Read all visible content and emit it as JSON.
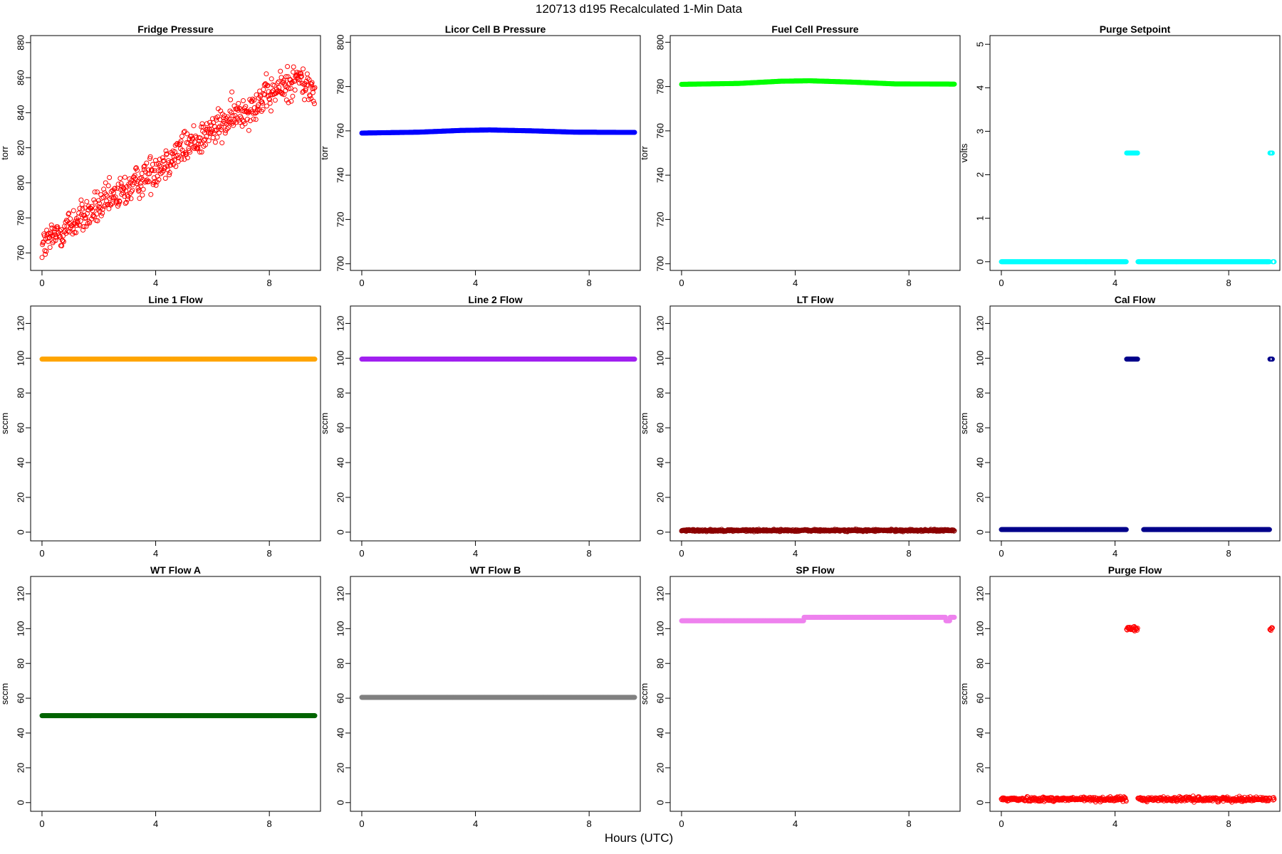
{
  "figure_title": "120713   d195   Recalculated 1-Min Data",
  "x_axis_label": "Hours (UTC)",
  "chart_data": [
    {
      "type": "scatter",
      "title": "Fridge Pressure",
      "ylabel": "torr",
      "xlim": [
        -0.4,
        9.8
      ],
      "ylim": [
        750,
        884
      ],
      "xticks": [
        0,
        4,
        8
      ],
      "yticks": [
        760,
        780,
        800,
        820,
        840,
        860,
        880
      ],
      "color": "#ff0000",
      "marker": "open-circle",
      "trend": [
        [
          0,
          764
        ],
        [
          1,
          776
        ],
        [
          2,
          786
        ],
        [
          3,
          796
        ],
        [
          4,
          808
        ],
        [
          5,
          820
        ],
        [
          6,
          830
        ],
        [
          7,
          840
        ],
        [
          8,
          850
        ],
        [
          9,
          860
        ],
        [
          9.5,
          852
        ]
      ],
      "noise": 7
    },
    {
      "type": "scatter",
      "title": "Licor Cell B Pressure",
      "ylabel": "torr",
      "xlim": [
        -0.4,
        9.8
      ],
      "ylim": [
        697,
        803
      ],
      "xticks": [
        0,
        4,
        8
      ],
      "yticks": [
        700,
        720,
        740,
        760,
        780,
        800
      ],
      "color": "#0000ff",
      "marker": "open-circle",
      "trend": [
        [
          0,
          759
        ],
        [
          2,
          759.4
        ],
        [
          3.5,
          760.2
        ],
        [
          4.5,
          760.4
        ],
        [
          6,
          760
        ],
        [
          7.5,
          759.4
        ],
        [
          9.6,
          759.3
        ]
      ],
      "noise": 0
    },
    {
      "type": "scatter",
      "title": "Fuel Cell Pressure",
      "ylabel": "torr",
      "xlim": [
        -0.4,
        9.8
      ],
      "ylim": [
        697,
        803
      ],
      "xticks": [
        0,
        4,
        8
      ],
      "yticks": [
        700,
        720,
        740,
        760,
        780,
        800
      ],
      "color": "#00ff00",
      "marker": "open-circle",
      "trend": [
        [
          0,
          781
        ],
        [
          2,
          781.4
        ],
        [
          3.5,
          782.4
        ],
        [
          4.5,
          782.6
        ],
        [
          6,
          782
        ],
        [
          7.5,
          781.2
        ],
        [
          9.6,
          781.1
        ]
      ],
      "noise": 0
    },
    {
      "type": "scatter",
      "title": "Purge Setpoint",
      "ylabel": "volts",
      "xlim": [
        -0.4,
        9.8
      ],
      "ylim": [
        -0.2,
        5.2
      ],
      "xticks": [
        0,
        4,
        8
      ],
      "yticks": [
        0,
        1,
        2,
        3,
        4,
        5
      ],
      "color": "#00ffff",
      "marker": "open-circle",
      "segments": [
        {
          "x": [
            0,
            4.4
          ],
          "y": 0
        },
        {
          "x": [
            4.4,
            4.8
          ],
          "y": 2.5
        },
        {
          "x": [
            4.8,
            9.45
          ],
          "y": 0
        },
        {
          "x": [
            9.45,
            9.55
          ],
          "y": 2.5
        },
        {
          "x": [
            9.55,
            9.6
          ],
          "y": 0
        }
      ],
      "noise": 0
    },
    {
      "type": "scatter",
      "title": "Line 1 Flow",
      "ylabel": "sccm",
      "xlim": [
        -0.4,
        9.8
      ],
      "ylim": [
        -5,
        130
      ],
      "xticks": [
        0,
        4,
        8
      ],
      "yticks": [
        0,
        20,
        40,
        60,
        80,
        100,
        120
      ],
      "color": "#ffa500",
      "marker": "open-circle",
      "segments": [
        {
          "x": [
            0,
            9.6
          ],
          "y": 99.5
        }
      ],
      "noise": 0
    },
    {
      "type": "scatter",
      "title": "Line 2 Flow",
      "ylabel": "sccm",
      "xlim": [
        -0.4,
        9.8
      ],
      "ylim": [
        -5,
        130
      ],
      "xticks": [
        0,
        4,
        8
      ],
      "yticks": [
        0,
        20,
        40,
        60,
        80,
        100,
        120
      ],
      "color": "#a020f0",
      "marker": "open-circle",
      "segments": [
        {
          "x": [
            0,
            9.6
          ],
          "y": 99.5
        }
      ],
      "noise": 0
    },
    {
      "type": "scatter",
      "title": "LT Flow",
      "ylabel": "sccm",
      "xlim": [
        -0.4,
        9.8
      ],
      "ylim": [
        -5,
        130
      ],
      "xticks": [
        0,
        4,
        8
      ],
      "yticks": [
        0,
        20,
        40,
        60,
        80,
        100,
        120
      ],
      "color": "#8b0000",
      "marker": "open-circle",
      "segments": [
        {
          "x": [
            0,
            9.6
          ],
          "y": 1
        }
      ],
      "noise": 0.4
    },
    {
      "type": "scatter",
      "title": "Cal Flow",
      "ylabel": "sccm",
      "xlim": [
        -0.4,
        9.8
      ],
      "ylim": [
        -5,
        130
      ],
      "xticks": [
        0,
        4,
        8
      ],
      "yticks": [
        0,
        20,
        40,
        60,
        80,
        100,
        120
      ],
      "color": "#00008b",
      "marker": "open-circle",
      "segments": [
        {
          "x": [
            0,
            4.4
          ],
          "y": 1.5
        },
        {
          "x": [
            4.4,
            4.8
          ],
          "y": 99.5
        },
        {
          "x": [
            5.0,
            9.45
          ],
          "y": 1.5
        },
        {
          "x": [
            9.45,
            9.55
          ],
          "y": 99.5
        }
      ],
      "noise": 0
    },
    {
      "type": "scatter",
      "title": "WT Flow A",
      "ylabel": "sccm",
      "xlim": [
        -0.4,
        9.8
      ],
      "ylim": [
        -5,
        130
      ],
      "xticks": [
        0,
        4,
        8
      ],
      "yticks": [
        0,
        20,
        40,
        60,
        80,
        100,
        120
      ],
      "color": "#006400",
      "marker": "open-circle",
      "segments": [
        {
          "x": [
            0,
            9.6
          ],
          "y": 50
        }
      ],
      "noise": 0
    },
    {
      "type": "scatter",
      "title": "WT Flow B",
      "ylabel": "",
      "xlim": [
        -0.4,
        9.8
      ],
      "ylim": [
        -5,
        130
      ],
      "xticks": [
        0,
        4,
        8
      ],
      "yticks": [
        0,
        20,
        40,
        60,
        80,
        100,
        120
      ],
      "color": "#808080",
      "marker": "open-circle",
      "segments": [
        {
          "x": [
            0,
            9.6
          ],
          "y": 60.5
        }
      ],
      "noise": 0
    },
    {
      "type": "scatter",
      "title": "SP Flow",
      "ylabel": "sccm",
      "xlim": [
        -0.4,
        9.8
      ],
      "ylim": [
        -5,
        130
      ],
      "xticks": [
        0,
        4,
        8
      ],
      "yticks": [
        0,
        20,
        40,
        60,
        80,
        100,
        120
      ],
      "color": "#ee82ee",
      "marker": "open-circle",
      "segments": [
        {
          "x": [
            0,
            4.3
          ],
          "y": 104.5
        },
        {
          "x": [
            4.3,
            9.3
          ],
          "y": 106.5
        },
        {
          "x": [
            9.3,
            9.45
          ],
          "y": 104.5
        },
        {
          "x": [
            9.45,
            9.6
          ],
          "y": 106.5
        }
      ],
      "noise": 0
    },
    {
      "type": "scatter",
      "title": "Purge Flow",
      "ylabel": "sccm",
      "xlim": [
        -0.4,
        9.8
      ],
      "ylim": [
        -5,
        130
      ],
      "xticks": [
        0,
        4,
        8
      ],
      "yticks": [
        0,
        20,
        40,
        60,
        80,
        100,
        120
      ],
      "color": "#ff0000",
      "marker": "open-circle",
      "segments": [
        {
          "x": [
            0,
            4.4
          ],
          "y": 2
        },
        {
          "x": [
            4.4,
            4.8
          ],
          "y": 100
        },
        {
          "x": [
            4.8,
            9.45
          ],
          "y": 2
        },
        {
          "x": [
            9.45,
            9.55
          ],
          "y": 100
        },
        {
          "x": [
            9.55,
            9.6
          ],
          "y": 2
        }
      ],
      "noise": 0.9
    }
  ]
}
